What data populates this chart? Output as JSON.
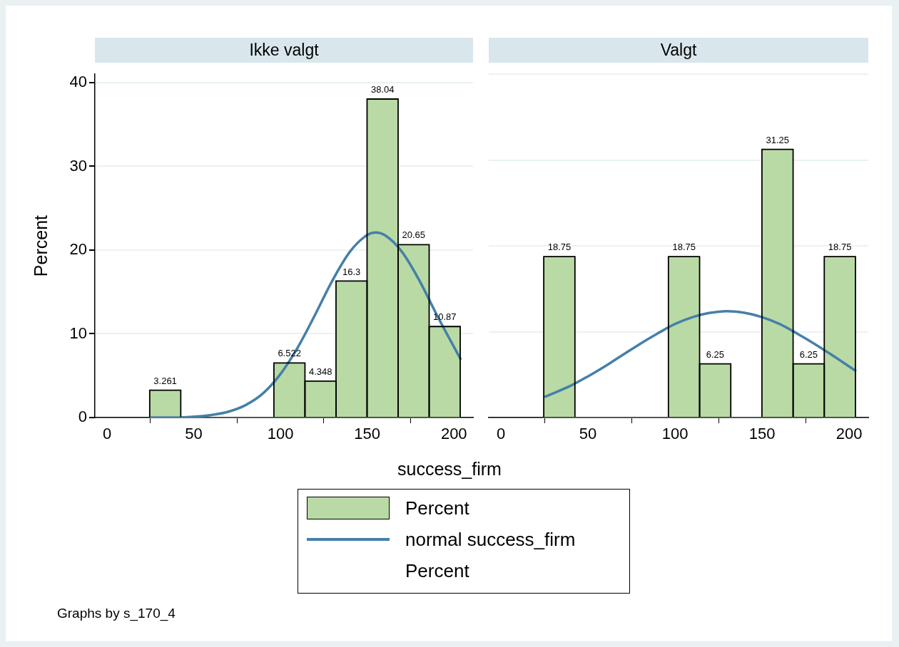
{
  "chart_data": [
    {
      "type": "histogram",
      "title": "Ikke valgt",
      "xlabel": "success_firm",
      "ylabel": "Percent",
      "bins": [
        24.6,
        42.5,
        60.4,
        78.3,
        96.2,
        114.1,
        132,
        149.9,
        167.8,
        185.7,
        203.6
      ],
      "series": [
        {
          "name": "Percent",
          "type": "histogram",
          "color": "#b9daa5",
          "values": [
            3.261,
            0,
            0,
            0,
            6.522,
            4.348,
            16.3,
            38.04,
            20.65,
            10.87
          ],
          "value_labels": [
            "3.261",
            null,
            null,
            null,
            "6.522",
            "4.348",
            "16.3",
            "38.04",
            "20.65",
            "10.87"
          ]
        },
        {
          "name": "normal success_firm",
          "type": "line",
          "color": "#4580a8",
          "x": [
            25,
            40,
            50,
            60,
            70,
            80,
            90,
            100,
            110,
            120,
            130,
            140,
            150,
            155,
            160,
            170,
            180,
            190,
            204
          ],
          "values": [
            0,
            0,
            0.1,
            0.3,
            0.7,
            1.5,
            2.9,
            5.2,
            8.4,
            12.3,
            16.4,
            19.8,
            21.8,
            22.1,
            21.8,
            19.8,
            16.4,
            12.3,
            6.9
          ]
        }
      ],
      "xlim": [
        -7,
        211
      ],
      "xticks": [
        0,
        50,
        100,
        150,
        200
      ],
      "ylim": [
        0,
        41
      ],
      "yticks": [
        0,
        10,
        20,
        30,
        40
      ],
      "grid": "y",
      "legend": "bottom",
      "marker": "none",
      "line_style": "solid",
      "annotations": [
        "Percent",
        "Graphs by s_170_4"
      ]
    },
    {
      "type": "histogram",
      "title": "Valgt",
      "bins": [
        24.6,
        42.5,
        60.4,
        78.3,
        96.2,
        114.1,
        132,
        149.9,
        167.8,
        185.7,
        203.6
      ],
      "series": [
        {
          "type": "histogram",
          "color": "#b9daa5",
          "values": [
            18.75,
            0,
            0,
            0,
            18.75,
            6.25,
            0,
            31.25,
            6.25,
            18.75
          ],
          "value_labels": [
            "18.75",
            null,
            null,
            null,
            "18.75",
            "6.25",
            null,
            "31.25",
            "6.25",
            "18.75"
          ]
        },
        {
          "type": "line",
          "color": "#4580a8",
          "x": [
            25,
            40,
            50,
            60,
            70,
            80,
            90,
            100,
            110,
            120,
            130,
            140,
            150,
            160,
            170,
            180,
            190,
            204
          ],
          "values": [
            2.4,
            3.7,
            4.8,
            6.0,
            7.3,
            8.6,
            9.8,
            10.9,
            11.7,
            12.2,
            12.4,
            12.2,
            11.7,
            10.9,
            9.8,
            8.6,
            7.3,
            5.4
          ]
        }
      ],
      "xlim": [
        -7,
        211
      ],
      "xticks": [
        0,
        50,
        100,
        150,
        200
      ],
      "ylim": [
        0,
        40
      ],
      "yticks": [
        {
          "value": 0,
          "label": null
        },
        {
          "value": 10,
          "label": null
        },
        {
          "value": 20,
          "label": null
        },
        {
          "value": 30,
          "label": null
        },
        {
          "value": 40,
          "label": null
        }
      ],
      "tick_labels": "x",
      "grid": "y",
      "marker": "none",
      "line_style": "solid"
    }
  ]
}
